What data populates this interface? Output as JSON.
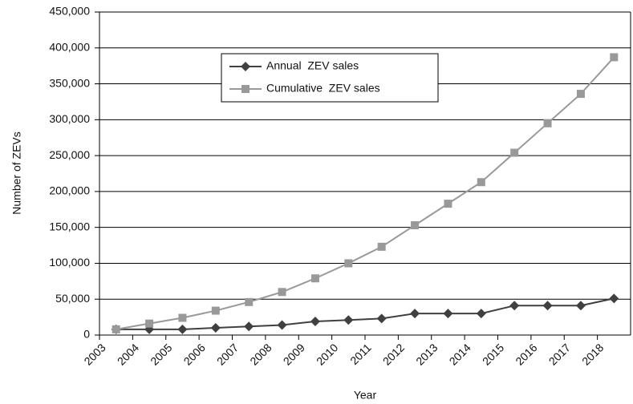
{
  "chart_data": {
    "type": "line",
    "x_label": "Year",
    "y_label": "Number of ZEVs",
    "categories": [
      "2003",
      "2004",
      "2005",
      "2006",
      "2007",
      "2008",
      "2009",
      "2010",
      "2011",
      "2012",
      "2013",
      "2014",
      "2015",
      "2016",
      "2017",
      "2018"
    ],
    "series": [
      {
        "name": "Annual  ZEV sales",
        "color": "#404040",
        "marker": "diamond",
        "values": [
          8000,
          8000,
          8000,
          10000,
          12000,
          14000,
          19000,
          21000,
          23000,
          30000,
          30000,
          30000,
          41000,
          41000,
          41000,
          51000
        ]
      },
      {
        "name": "Cumulative  ZEV sales",
        "color": "#999999",
        "marker": "square",
        "values": [
          8000,
          16000,
          24000,
          34000,
          46000,
          60000,
          79000,
          100000,
          123000,
          153000,
          183000,
          213000,
          254000,
          295000,
          336000,
          387000
        ]
      }
    ],
    "ylim": [
      0,
      450000
    ],
    "yticks": [
      0,
      {
        "value": 50000,
        "label": "50,000"
      },
      {
        "value": 100000,
        "label": "100,000"
      },
      {
        "value": 150000,
        "label": "150,000"
      },
      {
        "value": 200000,
        "label": "200,000"
      },
      {
        "value": 250000,
        "label": "250,000"
      },
      {
        "value": 300000,
        "label": "300,000"
      },
      {
        "value": 350000,
        "label": "350,000"
      },
      {
        "value": 400000,
        "label": "400,000"
      },
      {
        "value": 450000,
        "label": "450,000"
      }
    ],
    "grid": true,
    "legend": "upper center"
  }
}
